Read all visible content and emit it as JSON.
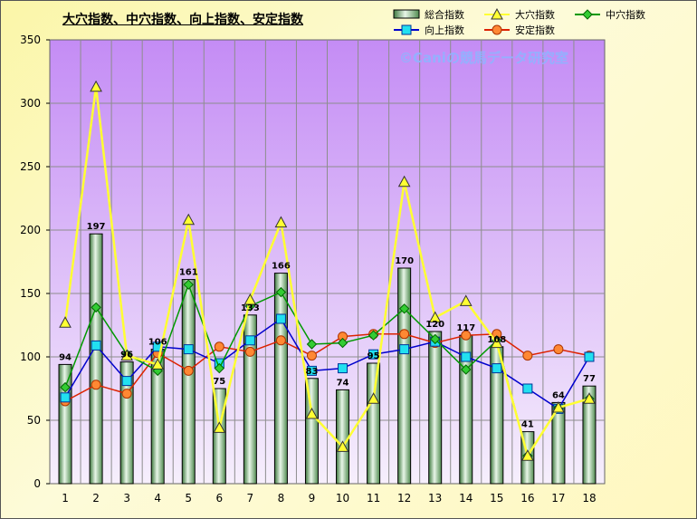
{
  "title": "大穴指数、中穴指数、向上指数、安定指数",
  "watermark": "©Caniの競馬データ研究室",
  "chart_data": {
    "type": "bar",
    "categories": [
      "1",
      "2",
      "3",
      "4",
      "5",
      "6",
      "7",
      "8",
      "9",
      "10",
      "11",
      "12",
      "13",
      "14",
      "15",
      "16",
      "17",
      "18"
    ],
    "ylim": [
      0,
      350
    ],
    "yticks": [
      0,
      50,
      100,
      150,
      200,
      250,
      300,
      350
    ],
    "grid": true,
    "legend_position": "top-right",
    "series": [
      {
        "name": "総合指数",
        "kind": "bar",
        "color": "#7fb07f",
        "values": [
          94,
          197,
          96,
          106,
          161,
          75,
          133,
          166,
          83,
          74,
          95,
          170,
          120,
          117,
          108,
          41,
          64,
          77
        ],
        "labels": [
          "94",
          "197",
          "96",
          "106",
          "161",
          "75",
          "133",
          "166",
          "83",
          "74",
          "95",
          "170",
          "120",
          "117",
          "108",
          "41",
          "64",
          "77"
        ]
      },
      {
        "name": "大穴指数",
        "kind": "line",
        "color": "#ffff33",
        "marker": "triangle",
        "values": [
          127,
          313,
          101,
          94,
          208,
          44,
          145,
          206,
          55,
          29,
          67,
          238,
          131,
          144,
          111,
          22,
          60,
          67
        ]
      },
      {
        "name": "中穴指数",
        "kind": "line",
        "color": "#009900",
        "marker": "diamond",
        "values": [
          76,
          139,
          102,
          89,
          157,
          91,
          140,
          151,
          110,
          111,
          117,
          138,
          114,
          90,
          113,
          22,
          60,
          67
        ]
      },
      {
        "name": "向上指数",
        "kind": "line",
        "color": "#0000cc",
        "marker": "square",
        "values": [
          68,
          109,
          81,
          108,
          106,
          95,
          113,
          130,
          89,
          91,
          102,
          106,
          112,
          100,
          91,
          75,
          59,
          100
        ]
      },
      {
        "name": "安定指数",
        "kind": "line",
        "color": "#dd2200",
        "marker": "circle",
        "values": [
          65,
          78,
          71,
          103,
          89,
          108,
          104,
          113,
          101,
          116,
          118,
          118,
          111,
          117,
          118,
          101,
          106,
          101
        ]
      }
    ]
  }
}
